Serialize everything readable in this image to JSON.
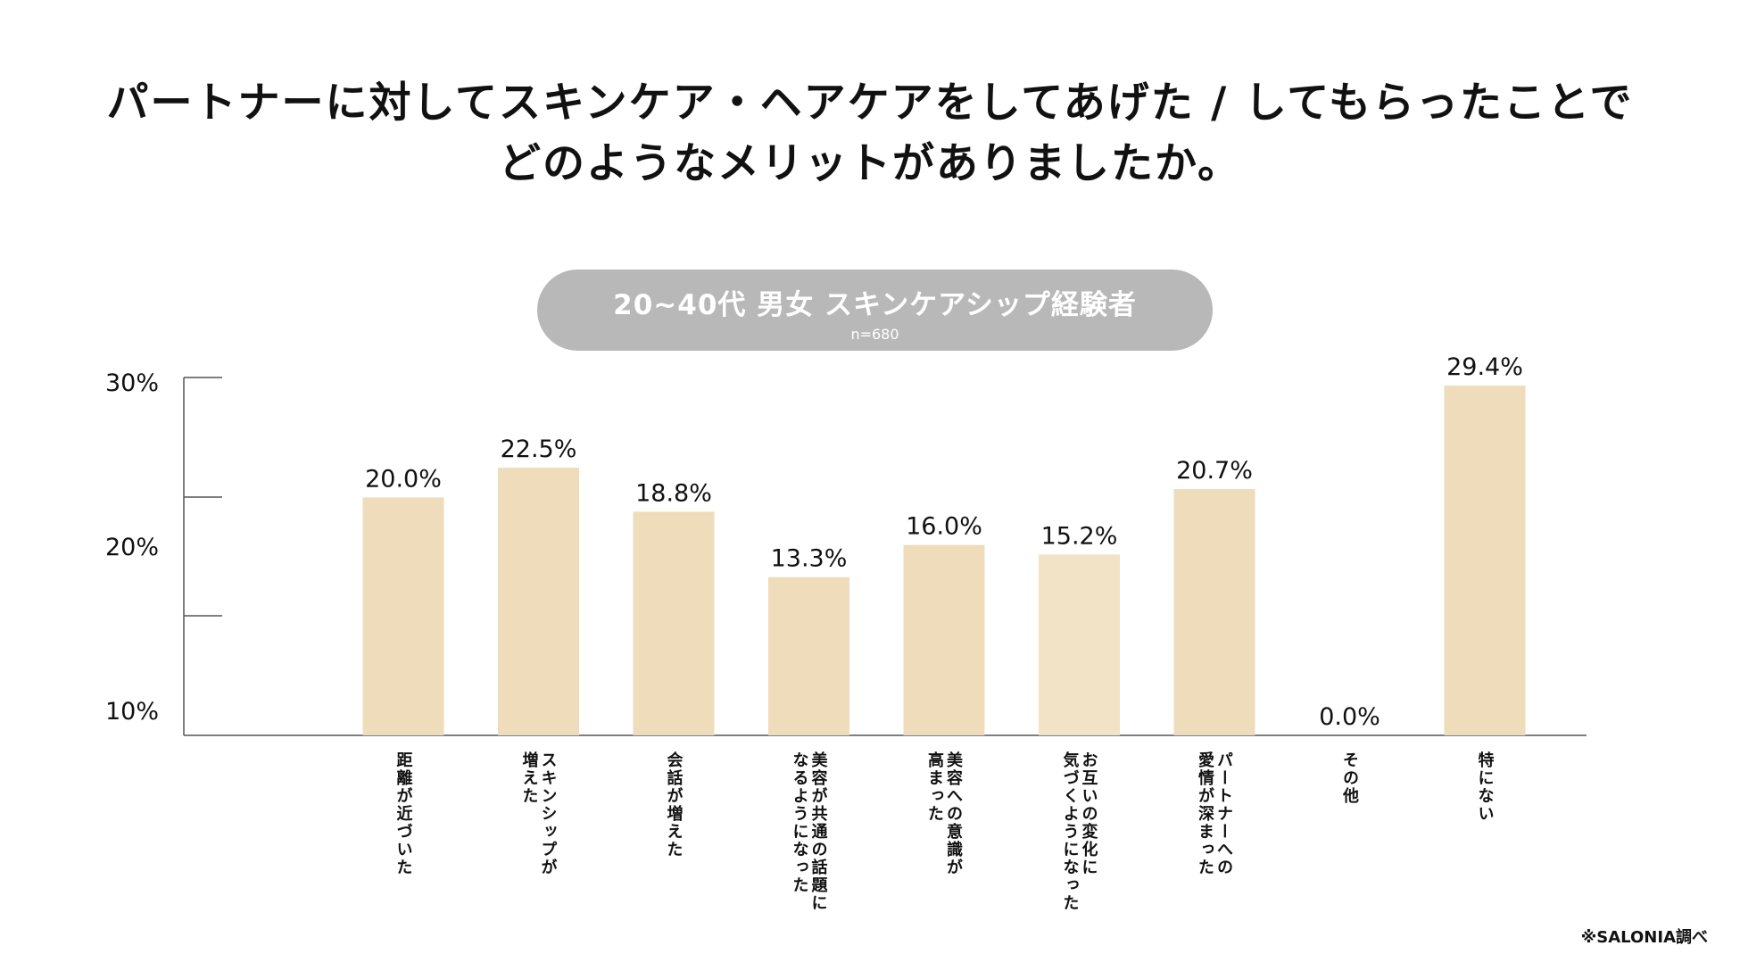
{
  "title_line1": "パートナーに対してスキンケア・ヘアケアをしてあげた / してもらったことで",
  "title_line2": "どのようなメリットがありましたか。",
  "subtitle": "20~40代 男女 スキンケアシップ経験者",
  "sample_size": "n=680",
  "source": "※SALONIA調べ",
  "chart_data": {
    "type": "bar",
    "categories": [
      [
        "距離が近づいた"
      ],
      [
        "スキンシップが",
        "増えた"
      ],
      [
        "会話が増えた"
      ],
      [
        "美容が共通の話題に",
        "なるようになった"
      ],
      [
        "美容への意識が",
        "高まった"
      ],
      [
        "お互いの変化に",
        "気づくようになった"
      ],
      [
        "パートナーへの",
        "愛情が深まった"
      ],
      [
        "その他"
      ],
      [
        "特にない"
      ]
    ],
    "values": [
      20.0,
      22.5,
      18.8,
      13.3,
      16.0,
      15.2,
      20.7,
      0.0,
      29.4
    ],
    "value_labels": [
      "20.0%",
      "22.5%",
      "18.8%",
      "13.3%",
      "16.0%",
      "15.2%",
      "20.7%",
      "0.0%",
      "29.4%"
    ],
    "y_tick_labels": [
      "30%",
      "20%",
      "10%"
    ],
    "bar_colors": [
      "#eedcbb",
      "#eedcbb",
      "#eedcbb",
      "#eedcbb",
      "#eedcbb",
      "#f2e2c6",
      "#eedcbb",
      "#eedcbb",
      "#eedcbb"
    ],
    "axis_color": "#555555",
    "grid": false
  }
}
